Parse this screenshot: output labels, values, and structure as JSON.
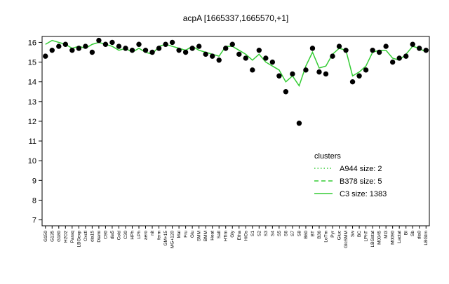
{
  "chart_data": {
    "type": "line",
    "title": "acpA [1665337,1665570,+1]",
    "categories": [
      "G150",
      "G135",
      "G180",
      "H2O2",
      "Paraq",
      "LBGexp",
      "Oxctl",
      "dia15",
      "Diami",
      "C90",
      "dia5",
      "Cold",
      "C30",
      "HPh",
      "LPh",
      "aero",
      "nit",
      "ferm",
      "GM+15",
      "MG+120",
      "Mal",
      "Fru",
      "Glu",
      "SMM",
      "BMM",
      "Heat",
      "Salt",
      "HTim",
      "Gly",
      "Etha",
      "HiOs",
      "S1",
      "S2",
      "S3",
      "S4",
      "S5",
      "S6",
      "S7",
      "S8",
      "B60",
      "BT",
      "B36",
      "LoTm",
      "Pyr",
      "Gluc",
      "GlcSMM",
      "Sw",
      "BC",
      "LPhT",
      "LBGstat",
      "M0045",
      "Mt3",
      "M0090",
      "Lactat",
      "BI",
      "Sb",
      "dia0",
      "LBGtrn"
    ],
    "series": [
      {
        "name": "C3 size: 1383",
        "color": "#33cc33",
        "style": "solid",
        "values": [
          15.9,
          16.1,
          16.0,
          15.9,
          15.7,
          15.8,
          15.7,
          15.9,
          16.0,
          15.9,
          15.8,
          15.6,
          15.7,
          15.5,
          15.7,
          15.5,
          15.4,
          15.8,
          15.9,
          15.8,
          15.7,
          15.6,
          15.8,
          15.6,
          15.5,
          15.4,
          15.3,
          15.8,
          15.8,
          15.6,
          15.4,
          15.1,
          15.4,
          15.0,
          14.8,
          14.6,
          14.0,
          14.3,
          13.8,
          14.8,
          15.5,
          14.7,
          14.8,
          15.4,
          15.7,
          15.6,
          14.3,
          14.5,
          14.8,
          15.5,
          15.6,
          15.6,
          15.2,
          15.1,
          15.4,
          15.8,
          15.7,
          15.5
        ]
      },
      {
        "name": "points",
        "color": "#000000",
        "style": "points",
        "values": [
          15.3,
          15.6,
          15.8,
          15.9,
          15.6,
          15.7,
          15.8,
          15.5,
          16.1,
          15.9,
          16.0,
          15.8,
          15.7,
          15.6,
          15.9,
          15.6,
          15.5,
          15.7,
          15.9,
          16.0,
          15.6,
          15.5,
          15.7,
          15.8,
          15.4,
          15.3,
          15.1,
          15.7,
          15.9,
          15.4,
          15.2,
          14.6,
          15.6,
          15.2,
          15.0,
          14.3,
          13.5,
          14.4,
          11.9,
          14.6,
          15.7,
          14.5,
          14.4,
          15.3,
          15.8,
          15.6,
          14.0,
          14.3,
          14.6,
          15.6,
          15.5,
          15.8,
          15.0,
          15.2,
          15.3,
          15.9,
          15.7,
          15.6
        ]
      }
    ],
    "legend": {
      "title": "clusters",
      "entries": [
        {
          "name": "A944 size: 2",
          "style": "dotted",
          "color": "#33cc33"
        },
        {
          "name": "B378 size: 5",
          "style": "dashed",
          "color": "#33cc33"
        },
        {
          "name": "C3 size: 1383",
          "style": "solid",
          "color": "#33cc33"
        }
      ]
    },
    "ylim": [
      6.7,
      16.3
    ],
    "yticks": [
      7,
      8,
      9,
      10,
      11,
      12,
      13,
      14,
      15,
      16
    ]
  }
}
